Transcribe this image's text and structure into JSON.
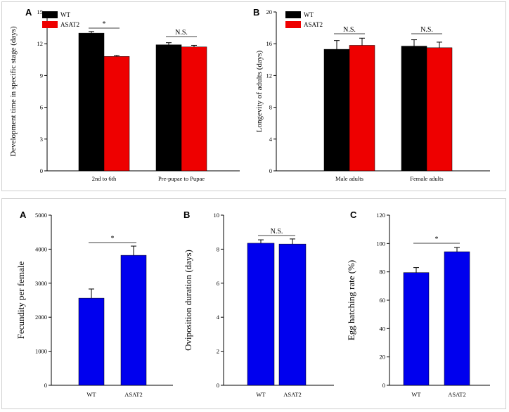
{
  "colors": {
    "wt": "#000000",
    "asat2": "#ee0000",
    "blue": "#0000ee",
    "axis": "#000000"
  },
  "chart_data": [
    {
      "panel": "A",
      "type": "bar",
      "ylabel": "Development time in specific stage (days)",
      "categories": [
        "2nd to 6th",
        "Pre-pupae to Pupae"
      ],
      "ylim": [
        0,
        15
      ],
      "yticks": [
        0,
        3,
        6,
        9,
        12,
        15
      ],
      "series": [
        {
          "name": "WT",
          "values": [
            13.0,
            11.9
          ],
          "errors": [
            0.15,
            0.2
          ]
        },
        {
          "name": "ASAT2",
          "values": [
            10.8,
            11.7
          ],
          "errors": [
            0.1,
            0.15
          ]
        }
      ],
      "significance": [
        "*",
        "N.S."
      ],
      "legend": "top-left"
    },
    {
      "panel": "B",
      "type": "bar",
      "ylabel": "Longevity of adults (days)",
      "categories": [
        "Male adults",
        "Female adults"
      ],
      "ylim": [
        0,
        20
      ],
      "yticks": [
        0,
        4,
        8,
        12,
        16,
        20
      ],
      "series": [
        {
          "name": "WT",
          "values": [
            15.3,
            15.7
          ],
          "errors": [
            1.1,
            0.8
          ]
        },
        {
          "name": "ASAT2",
          "values": [
            15.8,
            15.5
          ],
          "errors": [
            0.9,
            0.7
          ]
        }
      ],
      "significance": [
        "N.S.",
        "N.S."
      ],
      "legend": "top-left"
    },
    {
      "panel": "A",
      "type": "bar",
      "ylabel": "Fecundity per female",
      "categories": [
        "WT",
        "ASAT2"
      ],
      "ylim": [
        0,
        5000
      ],
      "yticks": [
        0,
        1000,
        2000,
        3000,
        4000,
        5000
      ],
      "values": [
        2560,
        3820
      ],
      "errors": [
        270,
        270
      ],
      "significance": "*"
    },
    {
      "panel": "B",
      "type": "bar",
      "ylabel": "Oviposition duration (days)",
      "categories": [
        "WT",
        "ASAT2"
      ],
      "ylim": [
        0,
        10
      ],
      "yticks": [
        0,
        2,
        4,
        6,
        8,
        10
      ],
      "values": [
        8.35,
        8.3
      ],
      "errors": [
        0.2,
        0.3
      ],
      "significance": "N.S."
    },
    {
      "panel": "C",
      "type": "bar",
      "ylabel": "Egg hatching rate (%)",
      "categories": [
        "WT",
        "ASAT2"
      ],
      "ylim": [
        0,
        120
      ],
      "yticks": [
        0,
        20,
        40,
        60,
        80,
        100,
        120
      ],
      "values": [
        79.5,
        94.2
      ],
      "errors": [
        3.5,
        3.0
      ],
      "significance": "*"
    }
  ]
}
